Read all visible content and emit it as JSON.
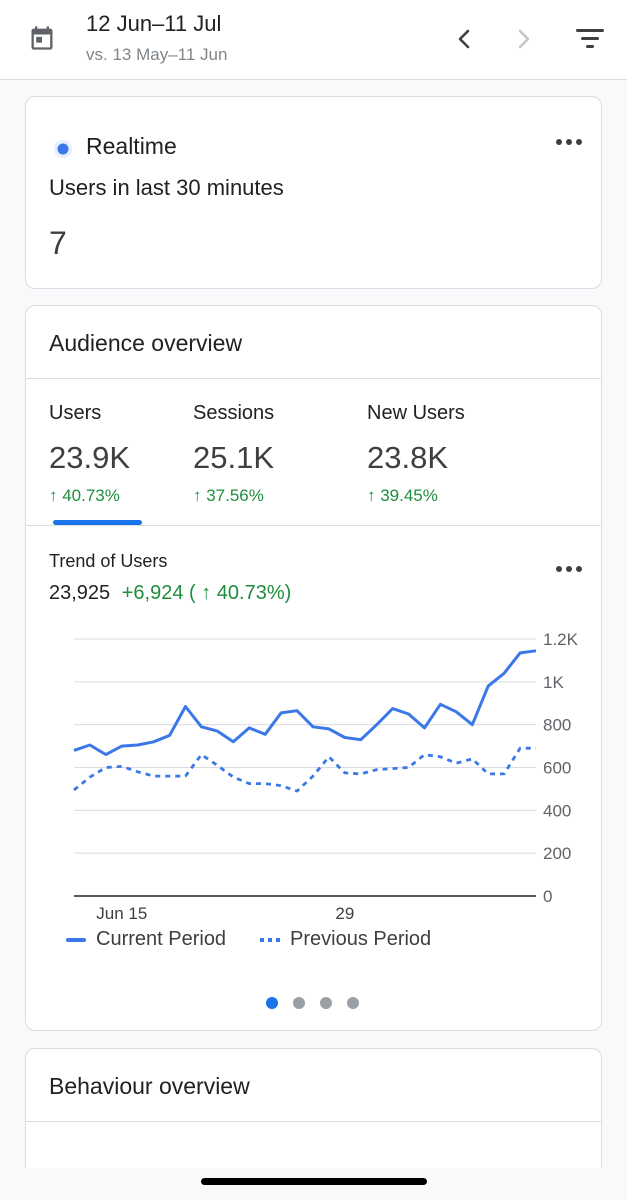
{
  "header": {
    "date_range": "12 Jun–11 Jul",
    "compare_range": "vs. 13 May–11 Jun",
    "icons": {
      "calendar": "calendar-icon",
      "previous": "chevron-left-icon",
      "next": "chevron-right-icon",
      "filter": "filter-icon"
    }
  },
  "realtime": {
    "title": "Realtime",
    "subtitle": "Users in last 30 minutes",
    "value": "7",
    "dot_color": "#3b78e7"
  },
  "audience": {
    "title": "Audience overview",
    "metrics": [
      {
        "label": "Users",
        "value": "23.9K",
        "change": "↑ 40.73%"
      },
      {
        "label": "Sessions",
        "value": "25.1K",
        "change": "↑ 37.56%"
      },
      {
        "label": "New Users",
        "value": "23.8K",
        "change": "↑ 39.45%"
      }
    ],
    "selected_metric": "Users",
    "trend": {
      "title": "Trend of Users",
      "total": "23,925",
      "delta": "+6,924 ( ↑ 40.73%)"
    },
    "pagination": {
      "count": 4,
      "active": 1
    }
  },
  "behaviour": {
    "title": "Behaviour overview"
  },
  "colors": {
    "accent": "#3b78e7",
    "positive": "#1e8e3e",
    "grid": "#dadce0"
  },
  "chart_data": {
    "type": "line",
    "x_tick_labels": [
      "Jun 15",
      "29"
    ],
    "y_tick_labels": [
      "0",
      "200",
      "400",
      "600",
      "800",
      "1K",
      "1.2K"
    ],
    "ylim": [
      0,
      1200
    ],
    "grid": true,
    "legend_placement": "bottom",
    "series": [
      {
        "name": "Current Period",
        "style": "solid",
        "color": "#3b78e7",
        "values": [
          680,
          705,
          660,
          700,
          705,
          720,
          750,
          885,
          790,
          770,
          720,
          785,
          755,
          855,
          865,
          790,
          780,
          740,
          730,
          800,
          875,
          850,
          785,
          895,
          860,
          800,
          980,
          1040,
          1135,
          1145
        ]
      },
      {
        "name": "Previous Period",
        "style": "dotted",
        "color": "#3b78e7",
        "values": [
          495,
          555,
          600,
          605,
          580,
          560,
          560,
          560,
          660,
          610,
          555,
          525,
          525,
          515,
          490,
          560,
          650,
          575,
          570,
          590,
          595,
          600,
          660,
          650,
          620,
          640,
          570,
          570,
          690,
          690
        ]
      }
    ]
  }
}
